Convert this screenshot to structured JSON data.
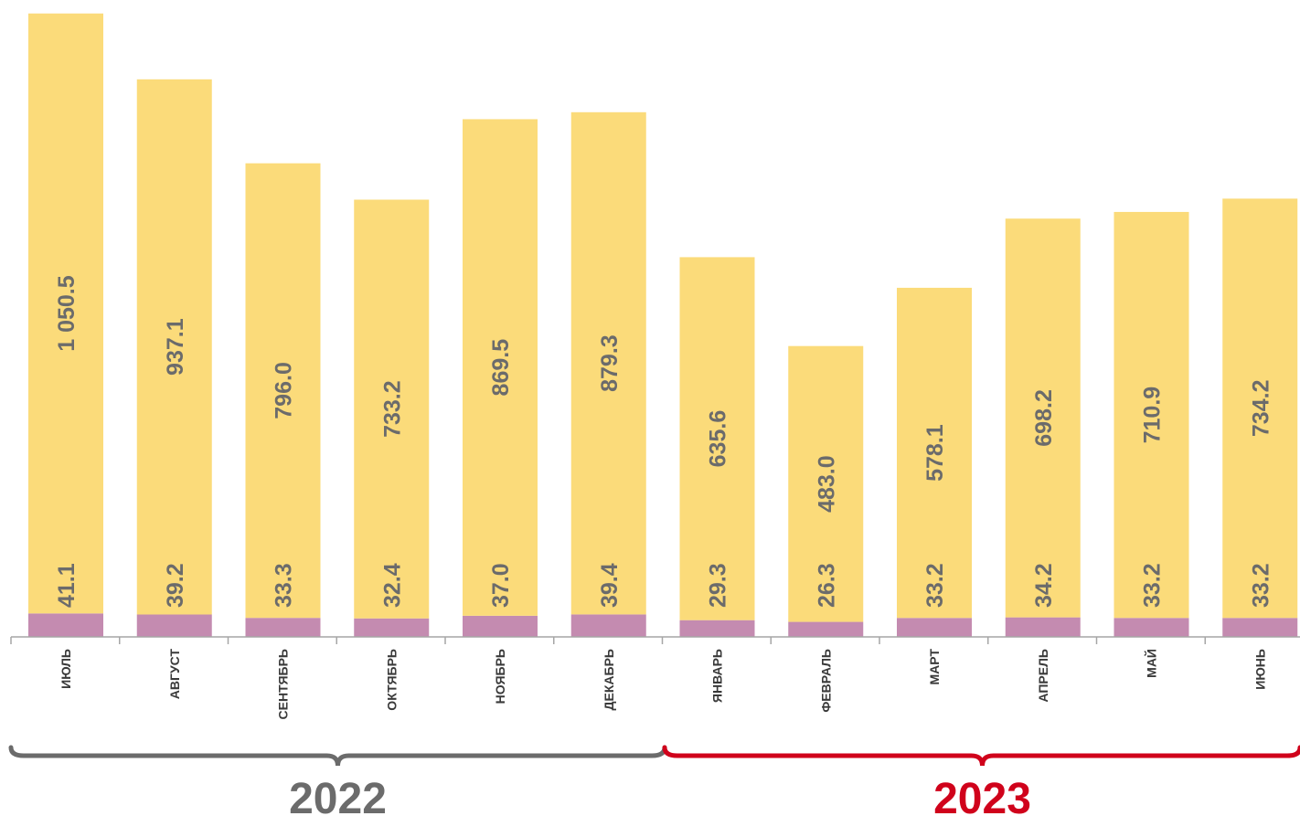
{
  "chart_data": {
    "type": "bar",
    "stacked": true,
    "categories": [
      "ИЮЛЬ",
      "АВГУСТ",
      "СЕНТЯБРЬ",
      "ОКТЯБРЬ",
      "НОЯБРЬ",
      "ДЕКАБРЬ",
      "ЯНВАРЬ",
      "ФЕВРАЛЬ",
      "МАРТ",
      "АПРЕЛЬ",
      "МАЙ",
      "ИЮНЬ"
    ],
    "series": [
      {
        "values": [
          41.1,
          39.2,
          33.3,
          32.4,
          37.0,
          39.4,
          29.3,
          26.3,
          33.2,
          34.2,
          33.2,
          33.2
        ],
        "labels": [
          "41.1",
          "39.2",
          "33.3",
          "32.4",
          "37.0",
          "39.4",
          "29.3",
          "26.3",
          "33.2",
          "34.2",
          "33.2",
          "33.2"
        ],
        "color": "#c48bb0"
      },
      {
        "values": [
          1050.5,
          937.1,
          796.0,
          733.2,
          869.5,
          879.3,
          635.6,
          483.0,
          578.1,
          698.2,
          710.9,
          734.2
        ],
        "labels": [
          "1 050.5",
          "937.1",
          "796.0",
          "733.2",
          "869.5",
          "879.3",
          "635.6",
          "483.0",
          "578.1",
          "698.2",
          "710.9",
          "734.2"
        ],
        "color": "#fbdb7a"
      }
    ],
    "groups": [
      {
        "label": "2022",
        "from": 0,
        "to": 5,
        "color": "#6b6b6b"
      },
      {
        "label": "2023",
        "from": 6,
        "to": 11,
        "color": "#d0021b"
      }
    ],
    "legend": "none",
    "grid": false
  }
}
